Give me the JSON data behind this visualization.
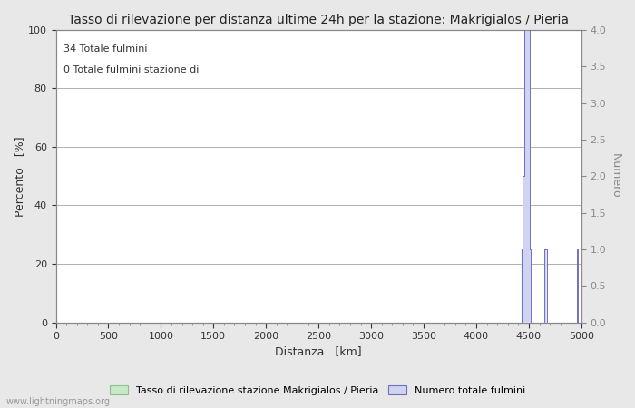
{
  "title": "Tasso di rilevazione per distanza ultime 24h per la stazione: Makrigialos / Pieria",
  "xlabel": "Distanza   [km]",
  "ylabel_left": "Percento   [%]",
  "ylabel_right": "Numero",
  "annotation_line1": "34 Totale fulmini",
  "annotation_line2": "0 Totale fulmini stazione di",
  "legend_label1": "Tasso di rilevazione stazione Makrigialos / Pieria",
  "legend_label2": "Numero totale fulmini",
  "watermark": "www.lightningmaps.org",
  "xlim": [
    0,
    5000
  ],
  "ylim_left": [
    0,
    100
  ],
  "ylim_right": [
    0,
    4.0
  ],
  "yticks_left": [
    0,
    20,
    40,
    60,
    80,
    100
  ],
  "yticks_right": [
    0.0,
    0.5,
    1.0,
    1.5,
    2.0,
    2.5,
    3.0,
    3.5,
    4.0
  ],
  "xticks": [
    0,
    500,
    1000,
    1500,
    2000,
    2500,
    3000,
    3500,
    4000,
    4500,
    5000
  ],
  "bg_color": "#e8e8e8",
  "plot_bg_color": "#ffffff",
  "grid_color": "#b0b0b0",
  "fill_color": "#d0d4f0",
  "line_color": "#7070c0",
  "detection_color": "#c8e8c8",
  "detection_edge_color": "#90c090",
  "title_fontsize": 10,
  "label_fontsize": 9,
  "tick_fontsize": 8,
  "bin_width": 10,
  "lightning_distances": [
    4430,
    4440,
    4445,
    4450,
    4455,
    4460,
    4462,
    4464,
    4466,
    4468,
    4470,
    4472,
    4474,
    4476,
    4478,
    4480,
    4482,
    4484,
    4486,
    4488,
    4490,
    4492,
    4494,
    4496,
    4498,
    4500,
    4502,
    4504,
    4506,
    4508,
    4510,
    4650,
    4660,
    4960
  ]
}
